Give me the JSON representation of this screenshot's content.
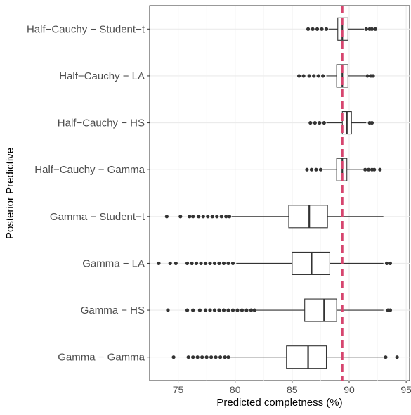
{
  "chart_data": {
    "type": "boxplot",
    "xlabel": "Predicted completness (%)",
    "ylabel": "Posterior Predictive",
    "xlim": [
      72.5,
      95.3
    ],
    "x_ticks": [
      75,
      80,
      85,
      90,
      95
    ],
    "reference_line": {
      "x": 89.4,
      "style": "dashed",
      "color": "#d6456e"
    },
    "grid": true,
    "colors": {
      "box_fill": "#ffffff",
      "box_stroke": "#333333",
      "outlier": "#333333",
      "grid": "#ebebeb",
      "axis_text": "#4d4d4d"
    },
    "categories": [
      "Half−Cauchy − Student−t",
      "Half−Cauchy − LA",
      "Half−Cauchy − HS",
      "Half−Cauchy − Gamma",
      "Gamma − Student−t",
      "Gamma − LA",
      "Gamma − HS",
      "Gamma − Gamma"
    ],
    "boxes": [
      {
        "whisker_low": 88.2,
        "q1": 89.0,
        "median": 89.4,
        "q3": 89.9,
        "whisker_high": 91.3,
        "outliers_low": [
          86.4,
          86.8,
          87.2,
          87.6,
          88.0
        ],
        "outliers_high": [
          91.5,
          91.8,
          92.0,
          92.3
        ]
      },
      {
        "whisker_low": 88.0,
        "q1": 88.9,
        "median": 89.4,
        "q3": 89.9,
        "whisker_high": 91.4,
        "outliers_low": [
          85.6,
          86.0,
          86.5,
          86.9,
          87.3,
          87.7
        ],
        "outliers_high": [
          91.6,
          91.9,
          92.1
        ]
      },
      {
        "whisker_low": 88.0,
        "q1": 89.4,
        "median": 89.8,
        "q3": 90.2,
        "whisker_high": 91.5,
        "outliers_low": [
          86.6,
          87.0,
          87.4,
          87.8
        ],
        "outliers_high": [
          91.8,
          92.0
        ]
      },
      {
        "whisker_low": 87.6,
        "q1": 88.9,
        "median": 89.4,
        "q3": 89.8,
        "whisker_high": 91.2,
        "outliers_low": [
          86.3,
          86.7,
          87.1,
          87.5
        ],
        "outliers_high": [
          91.4,
          91.7,
          92.0,
          92.2,
          92.7
        ]
      },
      {
        "whisker_low": 79.7,
        "q1": 84.7,
        "median": 86.5,
        "q3": 88.1,
        "whisker_high": 93.0,
        "outliers_low": [
          74.0,
          75.2,
          76.0,
          76.3,
          76.8,
          77.2,
          77.6,
          78.0,
          78.4,
          78.8,
          79.2,
          79.5
        ],
        "outliers_high": []
      },
      {
        "whisker_low": 80.1,
        "q1": 85.0,
        "median": 86.7,
        "q3": 88.3,
        "whisker_high": 93.0,
        "outliers_low": [
          73.3,
          74.3,
          74.8,
          75.8,
          76.2,
          76.6,
          77.0,
          77.4,
          77.8,
          78.2,
          78.6,
          79.0,
          79.4,
          79.8
        ],
        "outliers_high": [
          93.3,
          93.6
        ]
      },
      {
        "whisker_low": 81.8,
        "q1": 86.1,
        "median": 87.8,
        "q3": 88.9,
        "whisker_high": 93.0,
        "outliers_low": [
          74.1,
          75.8,
          76.3,
          76.9,
          77.4,
          77.8,
          78.2,
          78.6,
          79.0,
          79.4,
          79.8,
          80.2,
          80.6,
          81.0,
          81.4,
          81.7
        ],
        "outliers_high": [
          93.4,
          93.6
        ]
      },
      {
        "whisker_low": 79.5,
        "q1": 84.5,
        "median": 86.4,
        "q3": 88.0,
        "whisker_high": 93.0,
        "outliers_low": [
          74.6,
          75.9,
          76.3,
          76.7,
          77.1,
          77.5,
          77.9,
          78.3,
          78.7,
          79.1,
          79.4
        ],
        "outliers_high": [
          93.2,
          94.2
        ]
      }
    ]
  }
}
